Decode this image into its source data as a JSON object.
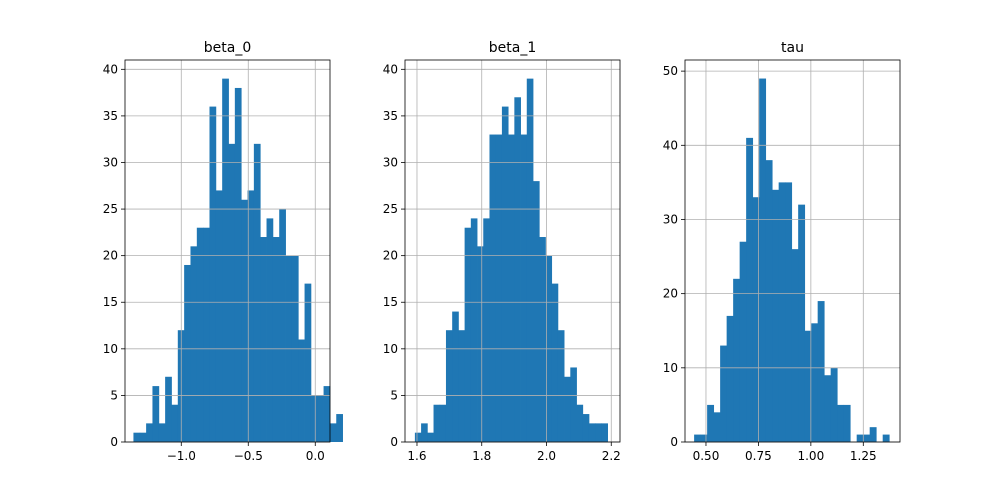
{
  "chart_data": [
    {
      "type": "histogram",
      "title": "beta_0",
      "xlabel": "",
      "ylabel": "",
      "grid": true,
      "bar_color": "#1f77b4",
      "xlim": [
        -1.42,
        0.11
      ],
      "ylim": [
        0,
        41
      ],
      "xticks": [
        -1.0,
        -0.5,
        0.0
      ],
      "xtick_labels": [
        "−1.0",
        "−0.5",
        "0.0"
      ],
      "yticks": [
        0,
        5,
        10,
        15,
        20,
        25,
        30,
        35,
        40
      ],
      "bin_start": -1.357,
      "bin_width": 0.0473,
      "counts": [
        1,
        1,
        2,
        6,
        2,
        7,
        4,
        12,
        19,
        21,
        23,
        23,
        36,
        27,
        39,
        32,
        38,
        26,
        27,
        32,
        22,
        24,
        22,
        25,
        20,
        20,
        11,
        17,
        5,
        5,
        6,
        2,
        3
      ]
    },
    {
      "type": "histogram",
      "title": "beta_1",
      "xlabel": "",
      "ylabel": "",
      "grid": true,
      "bar_color": "#1f77b4",
      "xlim": [
        1.563,
        2.227
      ],
      "ylim": [
        0,
        41
      ],
      "xticks": [
        1.6,
        1.8,
        2.0,
        2.2
      ],
      "xtick_labels": [
        "1.6",
        "1.8",
        "2.0",
        "2.2"
      ],
      "yticks": [
        0,
        5,
        10,
        15,
        20,
        25,
        30,
        35,
        40
      ],
      "bin_start": 1.5935,
      "bin_width": 0.0192,
      "counts": [
        1,
        2,
        1,
        4,
        4,
        12,
        14,
        12,
        23,
        24,
        21,
        24,
        33,
        33,
        36,
        33,
        37,
        33,
        39,
        28,
        22,
        20,
        17,
        12,
        7,
        8,
        4,
        3,
        2,
        2,
        2
      ]
    },
    {
      "type": "histogram",
      "title": "tau",
      "xlabel": "",
      "ylabel": "",
      "grid": true,
      "bar_color": "#1f77b4",
      "xlim": [
        0.4,
        1.425
      ],
      "ylim": [
        0,
        51.5
      ],
      "xticks": [
        0.5,
        0.75,
        1.0,
        1.25
      ],
      "xtick_labels": [
        "0.50",
        "0.75",
        "1.00",
        "1.25"
      ],
      "yticks": [
        0,
        10,
        20,
        30,
        40,
        50
      ],
      "bin_start": 0.4435,
      "bin_width": 0.031,
      "counts": [
        1,
        1,
        5,
        4,
        13,
        17,
        22,
        27,
        41,
        33,
        49,
        38,
        34,
        35,
        35,
        26,
        32,
        15,
        16,
        19,
        9,
        10,
        5,
        5,
        0,
        1,
        1,
        2,
        0,
        1
      ]
    }
  ]
}
